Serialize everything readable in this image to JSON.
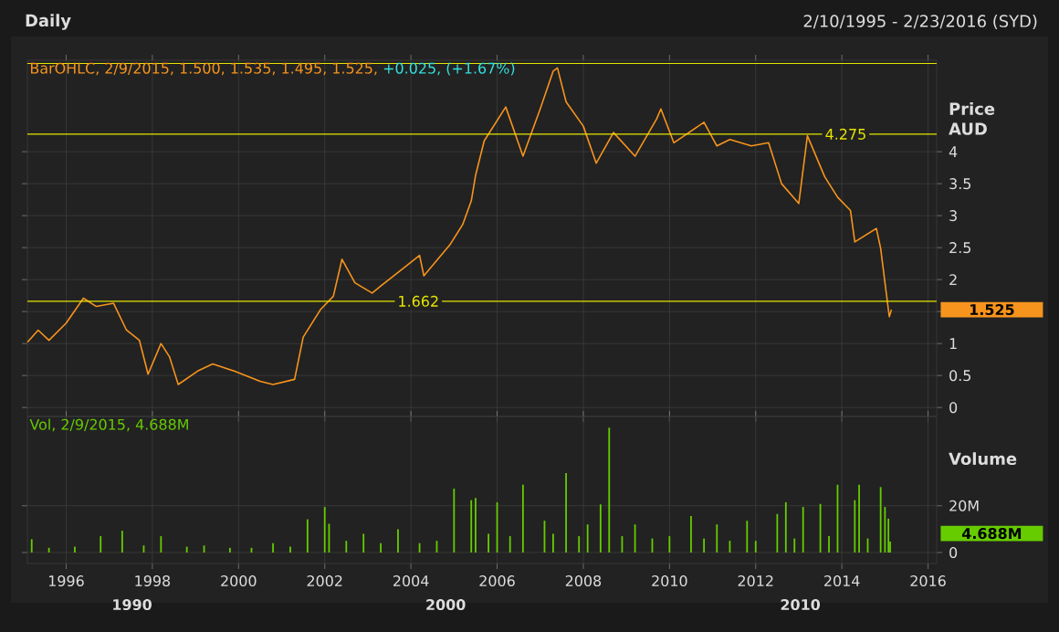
{
  "chart_data": [
    {
      "type": "line",
      "title": "Daily",
      "subtitle": "2/10/1995 - 2/23/2016 (SYD)",
      "ylabel": "Price AUD",
      "annotations": [
        "BarOHLC, 2/9/2015, 1.500, 1.535, 1.495, 1.525,",
        "+0.025, (+1.67%)",
        "1.525"
      ],
      "series": [
        {
          "color": "#f7941d",
          "x": [
            1995.1,
            1995.35,
            1995.6,
            1996.0,
            1996.4,
            1996.7,
            1997.1,
            1997.4,
            1997.7,
            1997.9,
            1998.2,
            1998.4,
            1998.6,
            1999.05,
            1999.4,
            1999.9,
            2000.5,
            2000.8,
            2001.3,
            2001.5,
            2001.9,
            2002.2,
            2002.4,
            2002.7,
            2003.1,
            2003.3,
            2003.9,
            2004.2,
            2004.3,
            2004.9,
            2005.2,
            2005.4,
            2005.5,
            2005.7,
            2006.2,
            2006.6,
            2007.0,
            2007.3,
            2007.4,
            2007.6,
            2008.0,
            2008.3,
            2008.7,
            2009.2,
            2009.7,
            2009.8,
            2010.1,
            2010.8,
            2011.1,
            2011.4,
            2011.9,
            2012.3,
            2012.6,
            2013.0,
            2013.2,
            2013.6,
            2013.9,
            2014.2,
            2014.3,
            2014.8,
            2014.9,
            2015.0,
            2015.1,
            2015.15
          ],
          "values": [
            1.02,
            1.21,
            1.05,
            1.32,
            1.71,
            1.58,
            1.63,
            1.21,
            1.05,
            0.52,
            1.0,
            0.79,
            0.36,
            0.57,
            0.68,
            0.57,
            0.41,
            0.36,
            0.44,
            1.1,
            1.53,
            1.74,
            2.32,
            1.95,
            1.79,
            1.9,
            2.22,
            2.38,
            2.06,
            2.54,
            2.86,
            3.23,
            3.63,
            4.17,
            4.7,
            3.93,
            4.67,
            5.26,
            5.31,
            4.78,
            4.4,
            3.82,
            4.3,
            3.93,
            4.51,
            4.67,
            4.14,
            4.46,
            4.09,
            4.19,
            4.09,
            4.14,
            3.5,
            3.19,
            4.25,
            3.61,
            3.29,
            3.08,
            2.59,
            2.8,
            2.49,
            1.95,
            1.42,
            1.53
          ]
        }
      ],
      "xlim": [
        1995.1,
        2016.2
      ],
      "xticks": [
        1996,
        1998,
        2000,
        2002,
        2004,
        2006,
        2008,
        2010,
        2012,
        2014,
        2016
      ],
      "ylim": [
        -0.14,
        5.43
      ],
      "yticks": [
        0,
        0.5,
        1,
        {
          "value": 1.5,
          "label": null
        },
        2,
        2.5,
        3,
        3.5,
        4
      ],
      "ref_lines": [
        {
          "axis": "y",
          "value": 1.662,
          "label": "1.662",
          "color": "#e6e600"
        },
        {
          "axis": "y",
          "value": 4.275,
          "label": "4.275",
          "color": "#e6e600"
        },
        {
          "axis": "y",
          "value": 5.38,
          "color": "#e6e600"
        }
      ],
      "grid": true,
      "tick_labels": "y"
    },
    {
      "type": "bar",
      "ylabel": "Volume",
      "annotations": [
        "Vol, 2/9/2015, 4.688M",
        "4.688M",
        "1990",
        "2000",
        "2010"
      ],
      "series": [
        {
          "color": "#66cc00",
          "x": [
            1995.2,
            1995.6,
            1996.2,
            1996.8,
            1997.3,
            1997.8,
            1998.2,
            1998.8,
            1999.2,
            1999.8,
            2000.3,
            2000.8,
            2001.2,
            2001.6,
            2002.0,
            2002.1,
            2002.5,
            2002.9,
            2003.3,
            2003.7,
            2004.2,
            2004.6,
            2005.0,
            2005.4,
            2005.5,
            2005.8,
            2006.0,
            2006.3,
            2006.6,
            2007.1,
            2007.3,
            2007.6,
            2007.9,
            2008.1,
            2008.4,
            2008.6,
            2008.9,
            2009.2,
            2009.6,
            2010.0,
            2010.5,
            2010.8,
            2011.1,
            2011.4,
            2011.8,
            2012.0,
            2012.5,
            2012.7,
            2012.9,
            2013.1,
            2013.5,
            2013.7,
            2013.9,
            2014.3,
            2014.4,
            2014.6,
            2014.9,
            2015.0,
            2015.08,
            2015.12
          ],
          "values": [
            5.7,
            2,
            2.5,
            7,
            9.3,
            3,
            7,
            2.5,
            3,
            2,
            2,
            4,
            2.5,
            14.2,
            19.5,
            12.3,
            5,
            8,
            4,
            10,
            4,
            5,
            27.3,
            22.4,
            23.3,
            8,
            21.5,
            7,
            29,
            13.6,
            8,
            34,
            7,
            12,
            20.6,
            53.4,
            7,
            12,
            6,
            7,
            15.6,
            6,
            12,
            5,
            13.6,
            5,
            16.5,
            21.5,
            6,
            19.5,
            20.8,
            7,
            29,
            22.4,
            29,
            6,
            28,
            19.5,
            14.5,
            4.7
          ]
        }
      ],
      "xlim": [
        1995.1,
        2016.2
      ],
      "xticks": [
        1996,
        1998,
        2000,
        2002,
        2004,
        2006,
        2008,
        2010,
        2012,
        2014,
        2016
      ],
      "ylim": [
        -4.7,
        58.2
      ],
      "yticks": [
        0,
        {
          "value": 20,
          "label": "20M"
        }
      ],
      "grid": true
    }
  ]
}
